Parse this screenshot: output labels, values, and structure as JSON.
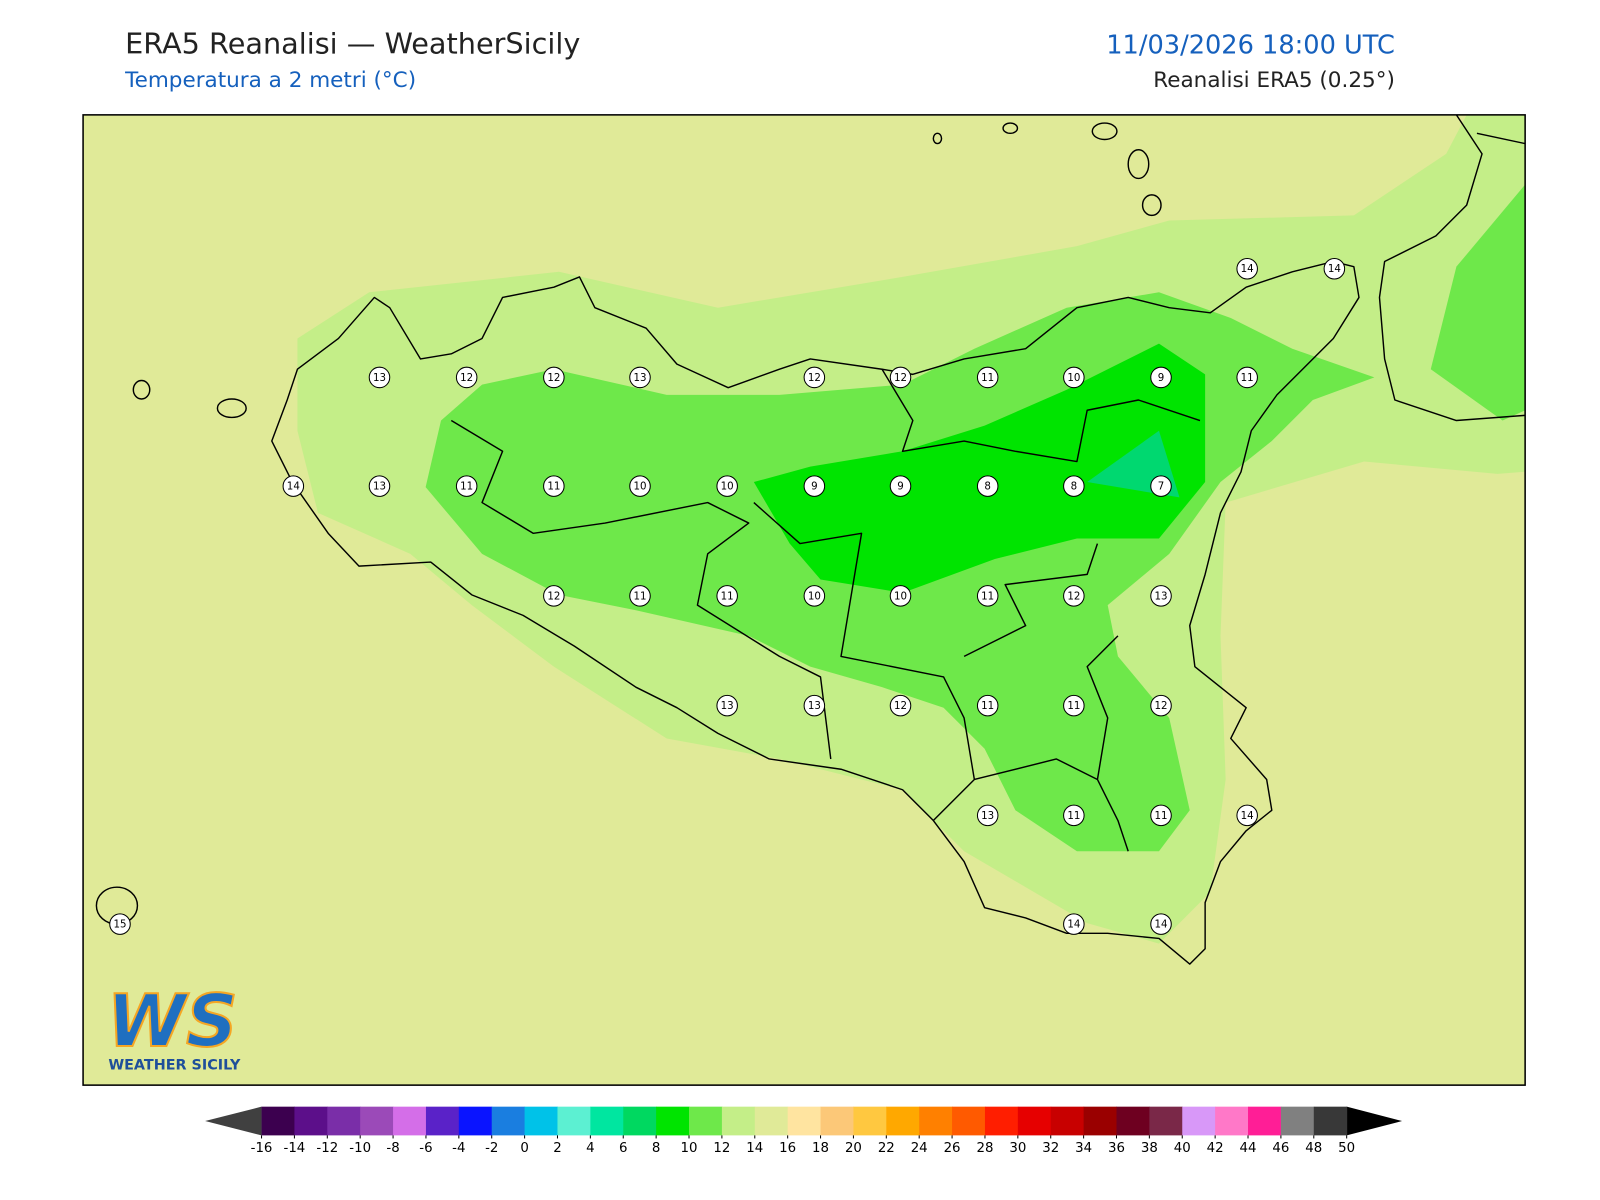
{
  "header": {
    "title": "ERA5 Reanalisi — WeatherSicily",
    "subtitle": "Temperatura a 2 metri (°C)",
    "datetime": "11/03/2026 18:00 UTC",
    "source": "Reanalisi ERA5 (0.25°)"
  },
  "map": {
    "stations": [
      13,
      12,
      12,
      13,
      12,
      12,
      11,
      10,
      9,
      11,
      14,
      14,
      14,
      13,
      11,
      11,
      10,
      10,
      9,
      9,
      8,
      8,
      7,
      12,
      11,
      11,
      10,
      10,
      11,
      12,
      13,
      13,
      13,
      12,
      11,
      11,
      12,
      13,
      11,
      11,
      14,
      15,
      14,
      14
    ]
  },
  "logo": {
    "text": "WS",
    "caption": "WEATHER SICILY"
  },
  "colorbar": {
    "ticks": [
      -16,
      -14,
      -12,
      -10,
      -8,
      -6,
      -4,
      -2,
      0,
      2,
      4,
      6,
      8,
      10,
      12,
      14,
      16,
      18,
      20,
      22,
      24,
      26,
      28,
      30,
      32,
      34,
      36,
      38,
      40,
      42,
      44,
      46,
      48,
      50
    ],
    "colors": [
      "#3c004f",
      "#5c0f8a",
      "#7a2ea8",
      "#9b4ab8",
      "#d46ee8",
      "#5a22c8",
      "#0a14ff",
      "#1a7ee0",
      "#00c2e8",
      "#5cf0d2",
      "#00e6a0",
      "#00d860",
      "#00e400",
      "#6ee84a",
      "#c4ee88",
      "#e0ea98",
      "#ffe4a0",
      "#fcc878",
      "#ffc840",
      "#ffa800",
      "#ff8000",
      "#ff5a00",
      "#ff1e00",
      "#e60000",
      "#c80000",
      "#9a0000",
      "#6e0020",
      "#7a2848",
      "#d898f8",
      "#ff78c8",
      "#ff1e96",
      "#808080",
      "#383838"
    ],
    "under_color": "#404040",
    "over_color": "#000000"
  }
}
